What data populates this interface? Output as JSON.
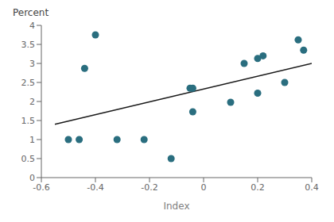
{
  "chart_data": {
    "type": "scatter",
    "xlabel": "Index",
    "ylabel": "Percent",
    "xlim": [
      -0.6,
      0.4
    ],
    "ylim": [
      0,
      4
    ],
    "xticks": [
      -0.6,
      -0.4,
      -0.2,
      0.0,
      0.2,
      0.4
    ],
    "yticks": [
      0,
      0.5,
      1.0,
      1.5,
      2.0,
      2.5,
      3.0,
      3.5,
      4.0
    ],
    "grid": false,
    "series": [
      {
        "type": "scatter",
        "color": "#2a6e7f",
        "marker": "circle",
        "x": [
          -0.5,
          -0.46,
          -0.44,
          -0.4,
          -0.32,
          -0.22,
          -0.12,
          -0.05,
          -0.04,
          -0.04,
          0.1,
          0.15,
          0.2,
          0.2,
          0.22,
          0.3,
          0.35,
          0.37
        ],
        "values": [
          1.0,
          1.0,
          2.87,
          3.75,
          1.0,
          1.0,
          0.5,
          2.35,
          2.35,
          1.73,
          1.98,
          3.0,
          2.22,
          3.13,
          3.2,
          2.5,
          3.62,
          3.35
        ]
      },
      {
        "type": "line",
        "color": "#1a1a1a",
        "line_style": "solid",
        "x": [
          -0.55,
          0.4
        ],
        "values": [
          1.4,
          3.0
        ]
      }
    ]
  }
}
